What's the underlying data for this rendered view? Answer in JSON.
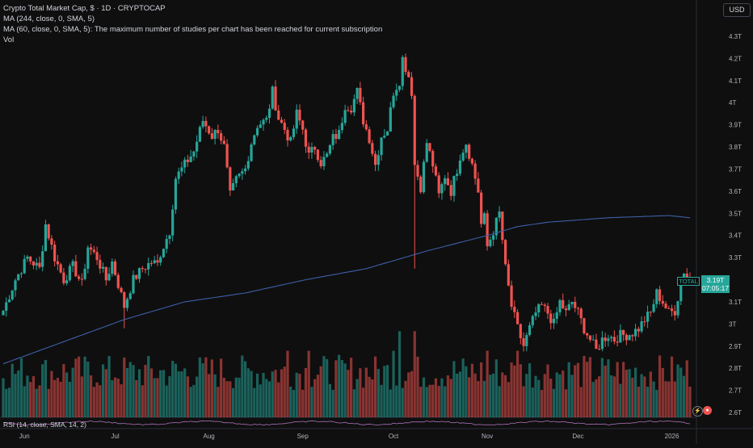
{
  "legend": {
    "title": "Crypto Total Market Cap, $ · 1D · CRYPTOCAP",
    "ma1": "MA (244, close, 0, SMA, 5)",
    "ma2": "MA (60, close, 0, SMA, 5): The maximum number of studies per chart has been reached for current subscription",
    "vol": "Vol"
  },
  "currency_button": "USD",
  "price_label": {
    "symbol": "TOTAL",
    "value": "3.19T",
    "countdown": "07:05:17"
  },
  "rsi_label": "RSI (14, close, SMA, 14, 2)",
  "icons": {
    "alert": "lightning-icon",
    "replay": "replay-icon"
  },
  "colors": {
    "up": "#26a69a",
    "down": "#ef5350",
    "ma": "#3d5fa8",
    "background": "#0f0f0f"
  },
  "chart_data": {
    "type": "candlestick",
    "y_ticks": [
      "4.3T",
      "4.2T",
      "4.1T",
      "4T",
      "3.9T",
      "3.8T",
      "3.7T",
      "3.6T",
      "3.5T",
      "3.4T",
      "3.3T",
      "3.1T",
      "3T",
      "2.9T",
      "2.8T",
      "2.7T",
      "2.6T"
    ],
    "y_tick_values": [
      4.3,
      4.2,
      4.1,
      4.0,
      3.9,
      3.8,
      3.7,
      3.6,
      3.5,
      3.4,
      3.3,
      3.1,
      3.0,
      2.9,
      2.8,
      2.7,
      2.6
    ],
    "ylim": [
      2.6,
      4.3
    ],
    "x_ticks": [
      "Jun",
      "Jul",
      "Aug",
      "Sep",
      "Oct",
      "Nov",
      "Dec",
      "2026"
    ],
    "x_tick_positions_day": [
      7,
      37,
      68,
      99,
      129,
      160,
      190,
      221
    ],
    "close_path": [
      [
        0,
        3.06
      ],
      [
        4,
        3.2
      ],
      [
        8,
        3.3
      ],
      [
        12,
        3.25
      ],
      [
        14,
        3.45
      ],
      [
        17,
        3.3
      ],
      [
        20,
        3.2
      ],
      [
        23,
        3.26
      ],
      [
        26,
        3.18
      ],
      [
        28,
        3.35
      ],
      [
        31,
        3.3
      ],
      [
        34,
        3.2
      ],
      [
        36,
        3.28
      ],
      [
        38,
        3.18
      ],
      [
        40,
        3.08
      ],
      [
        43,
        3.2
      ],
      [
        46,
        3.25
      ],
      [
        49,
        3.28
      ],
      [
        51,
        3.27
      ],
      [
        52,
        3.32
      ],
      [
        55,
        3.42
      ],
      [
        57,
        3.66
      ],
      [
        60,
        3.72
      ],
      [
        63,
        3.78
      ],
      [
        66,
        3.92
      ],
      [
        69,
        3.85
      ],
      [
        71,
        3.88
      ],
      [
        73,
        3.8
      ],
      [
        75,
        3.58
      ],
      [
        77,
        3.65
      ],
      [
        80,
        3.7
      ],
      [
        82,
        3.82
      ],
      [
        84,
        3.9
      ],
      [
        87,
        3.92
      ],
      [
        89,
        4.05
      ],
      [
        91,
        3.93
      ],
      [
        93,
        3.88
      ],
      [
        95,
        3.82
      ],
      [
        97,
        3.95
      ],
      [
        99,
        3.88
      ],
      [
        101,
        3.76
      ],
      [
        103,
        3.8
      ],
      [
        105,
        3.73
      ],
      [
        107,
        3.76
      ],
      [
        109,
        3.84
      ],
      [
        111,
        3.86
      ],
      [
        113,
        3.99
      ],
      [
        115,
        3.98
      ],
      [
        117,
        4.05
      ],
      [
        119,
        3.92
      ],
      [
        121,
        3.84
      ],
      [
        123,
        3.72
      ],
      [
        125,
        3.85
      ],
      [
        127,
        3.88
      ],
      [
        129,
        4.05
      ],
      [
        131,
        4.1
      ],
      [
        132,
        4.2
      ],
      [
        134,
        4.12
      ],
      [
        135,
        4.05
      ],
      [
        136,
        3.72
      ],
      [
        138,
        3.62
      ],
      [
        140,
        3.82
      ],
      [
        142,
        3.72
      ],
      [
        144,
        3.58
      ],
      [
        146,
        3.67
      ],
      [
        148,
        3.6
      ],
      [
        150,
        3.7
      ],
      [
        151,
        3.76
      ],
      [
        153,
        3.82
      ],
      [
        155,
        3.72
      ],
      [
        157,
        3.6
      ],
      [
        158,
        3.45
      ],
      [
        159,
        3.48
      ],
      [
        160,
        3.35
      ],
      [
        162,
        3.42
      ],
      [
        164,
        3.5
      ],
      [
        165,
        3.38
      ],
      [
        166,
        3.25
      ],
      [
        168,
        3.08
      ],
      [
        170,
        2.98
      ],
      [
        172,
        2.9
      ],
      [
        174,
        2.98
      ],
      [
        176,
        3.05
      ],
      [
        178,
        3.08
      ],
      [
        180,
        3.05
      ],
      [
        182,
        3.0
      ],
      [
        184,
        3.1
      ],
      [
        186,
        3.05
      ],
      [
        188,
        3.1
      ],
      [
        190,
        3.05
      ],
      [
        192,
        2.98
      ],
      [
        194,
        2.93
      ],
      [
        196,
        2.88
      ],
      [
        198,
        2.93
      ],
      [
        200,
        2.95
      ],
      [
        202,
        2.93
      ],
      [
        204,
        2.95
      ],
      [
        206,
        2.95
      ],
      [
        208,
        2.96
      ],
      [
        210,
        2.98
      ],
      [
        212,
        3.02
      ],
      [
        214,
        3.05
      ],
      [
        216,
        3.14
      ],
      [
        218,
        3.1
      ],
      [
        220,
        3.05
      ],
      [
        222,
        3.06
      ],
      [
        224,
        3.18
      ],
      [
        225,
        3.24
      ],
      [
        226,
        3.21
      ],
      [
        227,
        3.19
      ]
    ],
    "ma_path": [
      [
        0,
        2.82
      ],
      [
        20,
        2.92
      ],
      [
        40,
        3.02
      ],
      [
        60,
        3.1
      ],
      [
        80,
        3.14
      ],
      [
        100,
        3.2
      ],
      [
        120,
        3.25
      ],
      [
        140,
        3.33
      ],
      [
        160,
        3.4
      ],
      [
        170,
        3.44
      ],
      [
        180,
        3.46
      ],
      [
        190,
        3.47
      ],
      [
        200,
        3.48
      ],
      [
        210,
        3.485
      ],
      [
        220,
        3.49
      ],
      [
        227,
        3.48
      ]
    ],
    "volume_range": [
      0,
      1
    ],
    "series": [
      {
        "name": "TOTAL",
        "type": "candlestick"
      },
      {
        "name": "MA (244, close, 0, SMA, 5)",
        "type": "line"
      },
      {
        "name": "Vol",
        "type": "histogram"
      },
      {
        "name": "RSI (14, close, SMA, 14, 2)",
        "type": "line"
      }
    ],
    "last_value": 3.19
  }
}
